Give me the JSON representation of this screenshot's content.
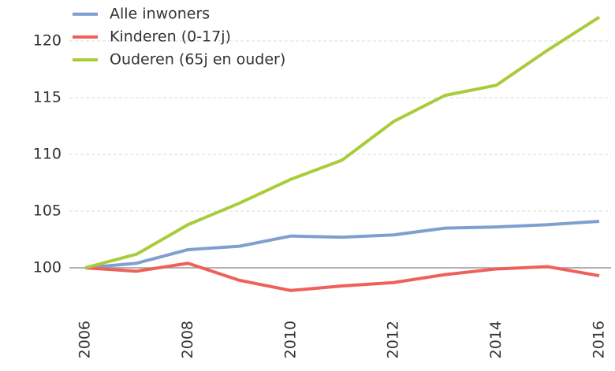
{
  "chart_data": {
    "type": "line",
    "x": [
      2006,
      2007,
      2008,
      2009,
      2010,
      2011,
      2012,
      2013,
      2014,
      2015,
      2016
    ],
    "series": [
      {
        "name": "Alle inwoners",
        "color": "#7f9fcf",
        "values": [
          100,
          100.4,
          101.6,
          101.9,
          102.8,
          102.7,
          102.9,
          103.5,
          103.6,
          103.8,
          104.1
        ]
      },
      {
        "name": "Kinderen (0-17j)",
        "color": "#f0605a",
        "values": [
          100,
          99.7,
          100.4,
          98.9,
          98.0,
          98.4,
          98.7,
          99.4,
          99.9,
          100.1,
          99.3
        ]
      },
      {
        "name": "Ouderen (65j en ouder)",
        "color": "#a8cc3a",
        "values": [
          100,
          101.2,
          103.8,
          105.7,
          107.8,
          109.5,
          112.9,
          115.2,
          116.1,
          119.2,
          122.1
        ]
      }
    ],
    "xlim": [
      2006,
      2016
    ],
    "xticks": [
      2006,
      2008,
      2010,
      2012,
      2014,
      2016
    ],
    "ylim": [
      96,
      123.5
    ],
    "yticks": [
      100,
      105,
      110,
      115,
      120
    ],
    "baseline": 100,
    "grid": true,
    "legend": "top-left"
  }
}
